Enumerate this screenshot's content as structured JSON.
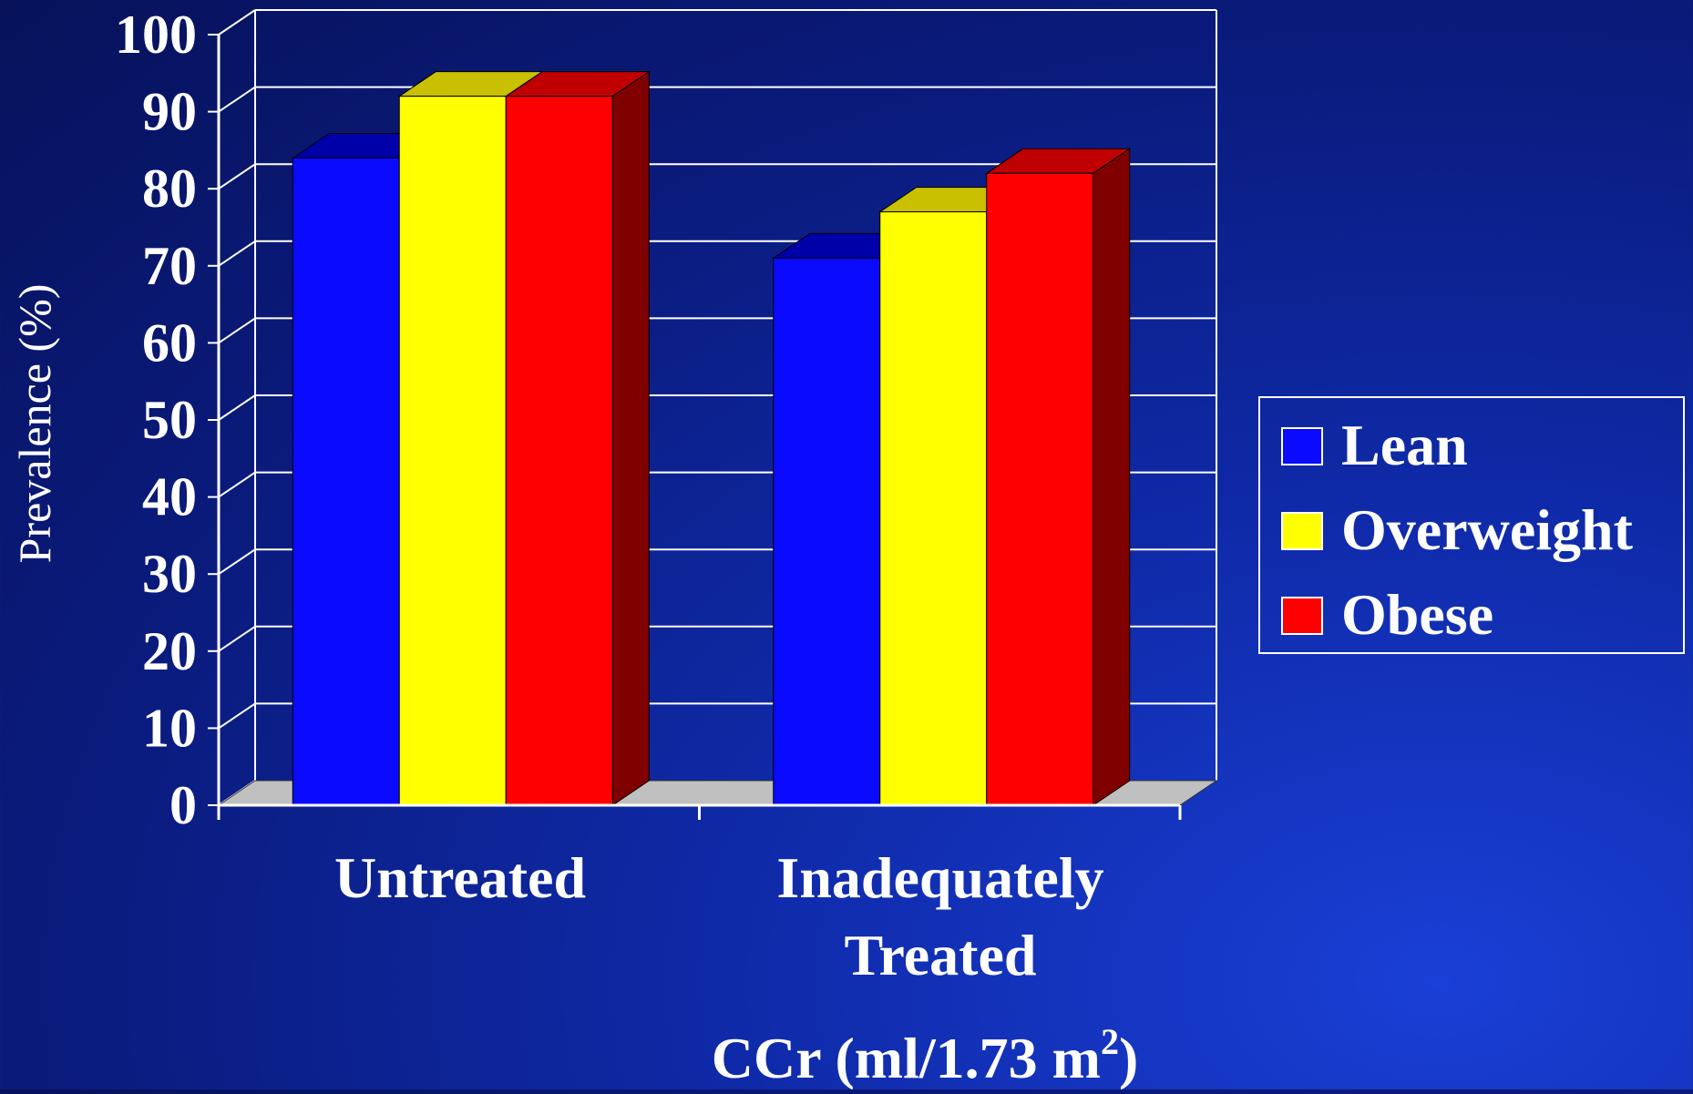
{
  "colors": {
    "lean": "#0a0aff",
    "overweight": "#ffff00",
    "obese": "#ff0000",
    "lean_top": "#0000a8",
    "overweight_top": "#c8c000",
    "obese_top": "#c00000",
    "lean_side": "#00007a",
    "overweight_side": "#8a8400",
    "obese_side": "#800000",
    "floor": "#c0c0c0",
    "gridline": "#ffffff"
  },
  "chart_data": {
    "type": "bar",
    "style": "3d-clustered",
    "title": "",
    "categories": [
      "Untreated",
      "Inadequately Treated"
    ],
    "category_lines": [
      [
        "Untreated"
      ],
      [
        "Inadequately",
        "Treated"
      ]
    ],
    "series": [
      {
        "name": "Lean",
        "color_key": "lean",
        "values": [
          84,
          71
        ]
      },
      {
        "name": "Overweight",
        "color_key": "overweight",
        "values": [
          92,
          77
        ]
      },
      {
        "name": "Obese",
        "color_key": "obese",
        "values": [
          92,
          82
        ]
      }
    ],
    "ylabel": "Prevalence (%)",
    "xlabel": "CCr (ml/1.73 m",
    "xlabel_superscript": "2",
    "xlabel_suffix": ")",
    "ylim": [
      0,
      100
    ],
    "yticks": [
      0,
      10,
      20,
      30,
      40,
      50,
      60,
      70,
      80,
      90,
      100
    ],
    "grid": true,
    "legend": "right"
  }
}
